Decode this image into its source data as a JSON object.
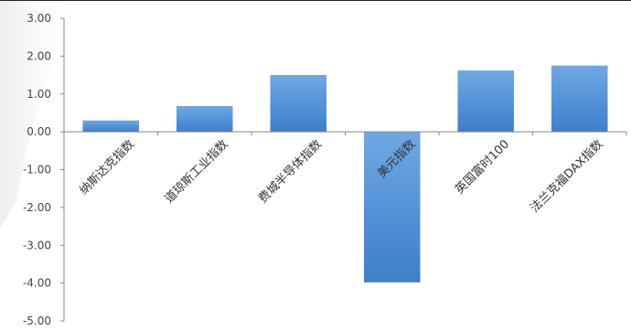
{
  "chart_data": {
    "type": "bar",
    "categories": [
      "纳斯达克指数",
      "道琼斯工业指数",
      "费城半导体指数",
      "美元指数",
      "英国富时100",
      "法兰克福DAX指数"
    ],
    "values": [
      0.3,
      0.68,
      1.5,
      -3.98,
      1.62,
      1.75
    ],
    "ylim": [
      -5.0,
      3.0
    ],
    "yticks": [
      "3.00",
      "2.00",
      "1.00",
      "0.00",
      "-1.00",
      "-2.00",
      "-3.00",
      "-4.00",
      "-5.00"
    ],
    "ytick_values": [
      3,
      2,
      1,
      0,
      -1,
      -2,
      -3,
      -4,
      -5
    ],
    "grid": false,
    "legend": "none",
    "colors": {
      "bar_top": "#6fa8e3",
      "bar_bottom": "#3d7fcc",
      "axis": "#888888",
      "text": "#333333"
    }
  }
}
